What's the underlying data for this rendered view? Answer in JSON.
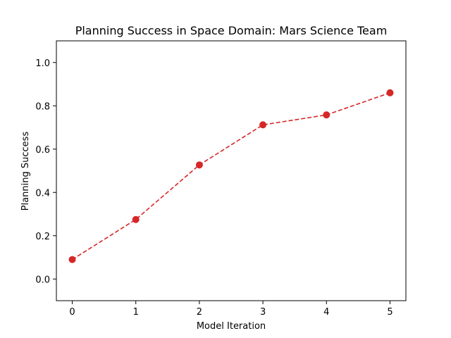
{
  "chart_data": {
    "type": "line",
    "title": "Planning Success in Space Domain: Mars Science Team",
    "xlabel": "Model Iteration",
    "ylabel": "Planning Success",
    "x": [
      0,
      1,
      2,
      3,
      4,
      5
    ],
    "x_ticks": [
      "0",
      "1",
      "2",
      "3",
      "4",
      "5"
    ],
    "xlim": [
      -0.25,
      5.25
    ],
    "y_ticks": [
      "0.0",
      "0.2",
      "0.4",
      "0.6",
      "0.8",
      "1.0"
    ],
    "ylim": [
      -0.1,
      1.1
    ],
    "grid": false,
    "legend": "none",
    "series": [
      {
        "values": [
          0.09,
          0.275,
          0.527,
          0.712,
          0.758,
          0.86
        ],
        "color": "#d62728",
        "line_style": "dashed",
        "marker": "circle"
      }
    ]
  }
}
